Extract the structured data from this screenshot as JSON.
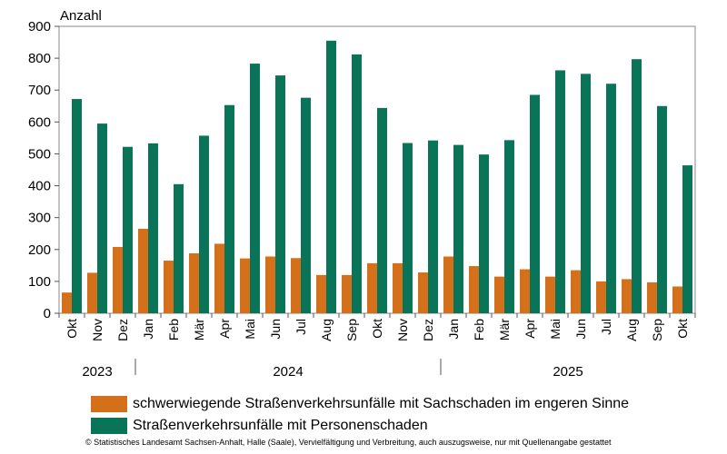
{
  "chart_data": {
    "type": "bar",
    "ylabel": "Anzahl",
    "ylim": [
      0,
      900
    ],
    "yticks": [
      0,
      100,
      200,
      300,
      400,
      500,
      600,
      700,
      800,
      900
    ],
    "categories": [
      "Okt",
      "Nov",
      "Dez",
      "Jan",
      "Feb",
      "Mär",
      "Apr",
      "Mai",
      "Jun",
      "Jul",
      "Aug",
      "Sep",
      "Okt",
      "Nov",
      "Dez",
      "Jan",
      "Feb",
      "Mär",
      "Apr",
      "Mai",
      "Jun",
      "Jul",
      "Aug",
      "Sep",
      "Okt"
    ],
    "year_groups": [
      {
        "label": "2023",
        "start": 0,
        "end": 2
      },
      {
        "label": "2024",
        "start": 3,
        "end": 14
      },
      {
        "label": "2025",
        "start": 15,
        "end": 24
      }
    ],
    "series": [
      {
        "name": "schwerwiegende Straßenverkehrsunfälle mit Sachschaden im engeren Sinne",
        "color": "#d46f1a",
        "values": [
          65,
          127,
          208,
          265,
          165,
          188,
          218,
          172,
          178,
          173,
          120,
          120,
          157,
          157,
          128,
          178,
          148,
          115,
          138,
          115,
          135,
          100,
          107,
          97,
          84
        ]
      },
      {
        "name": "Straßenverkehrsunfälle mit Personenschaden",
        "color": "#0a7458",
        "values": [
          672,
          595,
          522,
          533,
          405,
          557,
          653,
          783,
          746,
          676,
          855,
          812,
          644,
          534,
          542,
          528,
          498,
          543,
          685,
          762,
          751,
          720,
          797,
          650,
          464
        ]
      }
    ],
    "grid": false,
    "legend_position": "bottom"
  },
  "source": "© Statistisches Landesamt Sachsen-Anhalt, Halle (Saale), Vervielfältigung und Verbreitung, auch auszugsweise, nur mit Quellenangabe gestattet"
}
